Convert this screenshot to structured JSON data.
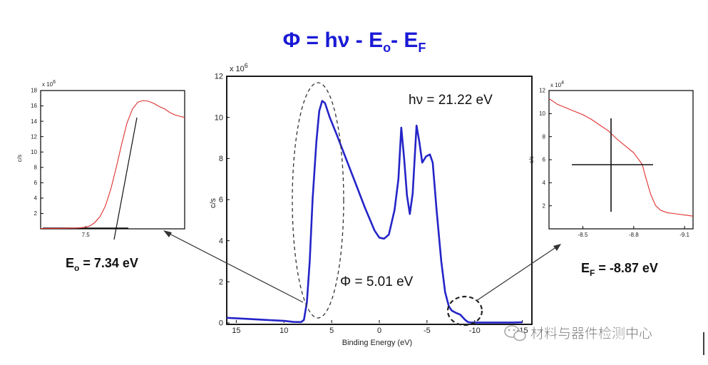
{
  "title": {
    "phi": "Φ",
    "eq_mid": " = hν - E",
    "sub_o": "o",
    "dash": "- E",
    "sub_f": "F"
  },
  "colors": {
    "title_blue": "#1a1ad6",
    "main_curve": "#2424c8",
    "zoom_curve": "#e03030"
  },
  "chart_data": [
    {
      "type": "line",
      "name": "UPS spectrum",
      "xlabel": "Binding Energy (eV)",
      "ylabel": "c/s",
      "y_multiplier": "x 10",
      "y_multiplier_exp": "6",
      "xlim": [
        16,
        -16
      ],
      "ylim": [
        0,
        12
      ],
      "xticks": [
        15,
        10,
        5,
        0,
        -5,
        -10,
        -15
      ],
      "xtick_labels": [
        "15",
        "10",
        "5",
        "0",
        "-5",
        "-10",
        "-15"
      ],
      "yticks": [
        0,
        2,
        4,
        6,
        8,
        10,
        12
      ],
      "ytick_labels": [
        "0",
        "2",
        "4",
        "6",
        "8",
        "10",
        "12"
      ],
      "x": [
        16,
        14,
        12,
        10,
        9,
        8.2,
        7.9,
        7.6,
        7.3,
        7.0,
        6.6,
        6.3,
        6.0,
        5.7,
        5.2,
        4.5,
        3.5,
        2.5,
        1.5,
        0.5,
        0,
        -0.5,
        -1.0,
        -1.6,
        -2.0,
        -2.3,
        -2.6,
        -2.9,
        -3.2,
        -3.5,
        -3.9,
        -4.2,
        -4.5,
        -4.9,
        -5.3,
        -5.6,
        -6.0,
        -6.5,
        -6.9,
        -7.3,
        -7.6,
        -8.0,
        -8.5,
        -9.0,
        -9.3,
        -9.6,
        -10,
        -11,
        -12,
        -13,
        -14,
        -15
      ],
      "values": [
        0.25,
        0.2,
        0.15,
        0.1,
        0.05,
        0.04,
        0.15,
        1.0,
        3.0,
        6.0,
        8.8,
        10.3,
        10.8,
        10.7,
        10.0,
        9.2,
        8.0,
        6.8,
        5.6,
        4.5,
        4.15,
        4.1,
        4.3,
        5.5,
        7.0,
        9.5,
        8.0,
        6.2,
        5.3,
        6.3,
        9.6,
        8.8,
        7.8,
        8.1,
        8.2,
        7.8,
        5.5,
        3.0,
        1.5,
        0.8,
        0.6,
        0.5,
        0.4,
        0.15,
        0.04,
        0.02,
        0.02,
        0.02,
        0.02,
        0.02,
        0.02,
        0.03
      ],
      "annotations": [
        {
          "text_main": "hν = 21.22 eV"
        },
        {
          "text_main": "Φ = 5.01 eV"
        }
      ]
    },
    {
      "type": "line",
      "name": "Secondary electron cutoff zoom",
      "ylabel": "c/s",
      "y_multiplier": "x 10",
      "y_multiplier_exp": "6",
      "xlim": [
        8.0,
        6.4
      ],
      "ylim": [
        0,
        18
      ],
      "xticks": [
        7.5
      ],
      "xtick_labels": [
        "7.5"
      ],
      "yticks": [
        2,
        4,
        6,
        8,
        10,
        12,
        14,
        16,
        18
      ],
      "ytick_labels": [
        "2",
        "4",
        "6",
        "8",
        "10",
        "12",
        "14",
        "16",
        "18"
      ],
      "x": [
        8.0,
        7.8,
        7.6,
        7.5,
        7.45,
        7.4,
        7.34,
        7.28,
        7.22,
        7.16,
        7.1,
        7.04,
        6.98,
        6.92,
        6.86,
        6.8,
        6.74,
        6.68,
        6.62,
        6.56,
        6.5,
        6.44,
        6.4
      ],
      "values": [
        0.05,
        0.06,
        0.1,
        0.2,
        0.4,
        0.8,
        1.6,
        3.0,
        5.2,
        8.0,
        11.0,
        13.8,
        15.6,
        16.5,
        16.7,
        16.6,
        16.3,
        15.9,
        15.6,
        15.1,
        14.8,
        14.6,
        14.5
      ],
      "result": {
        "prefix": "E",
        "sub": "o",
        "suffix": " = 7.34 eV"
      }
    },
    {
      "type": "line",
      "name": "Fermi edge zoom",
      "ylabel": "c/s",
      "y_multiplier": "x 10",
      "y_multiplier_exp": "4",
      "xlim": [
        -8.3,
        -9.15
      ],
      "ylim": [
        0,
        12
      ],
      "xticks": [
        -8.5,
        -8.8,
        -9.1
      ],
      "xtick_labels": [
        "-8.5",
        "-8.8",
        "-9.1"
      ],
      "yticks": [
        2,
        4,
        6,
        8,
        10,
        12
      ],
      "ytick_labels": [
        "2",
        "4",
        "6",
        "8",
        "10",
        "12"
      ],
      "x": [
        -8.3,
        -8.35,
        -8.4,
        -8.45,
        -8.5,
        -8.55,
        -8.6,
        -8.65,
        -8.7,
        -8.75,
        -8.8,
        -8.82,
        -8.85,
        -8.87,
        -8.9,
        -8.93,
        -8.96,
        -9.0,
        -9.05,
        -9.1,
        -9.15
      ],
      "values": [
        11.3,
        10.8,
        10.5,
        10.2,
        9.9,
        9.5,
        9.0,
        8.5,
        7.8,
        7.2,
        6.6,
        6.2,
        5.6,
        4.5,
        3.0,
        2.0,
        1.6,
        1.4,
        1.3,
        1.2,
        1.1
      ],
      "result": {
        "prefix": "E",
        "sub": "F",
        "suffix": " = -8.87 eV"
      }
    }
  ],
  "watermark": "材料与器件检测中心"
}
